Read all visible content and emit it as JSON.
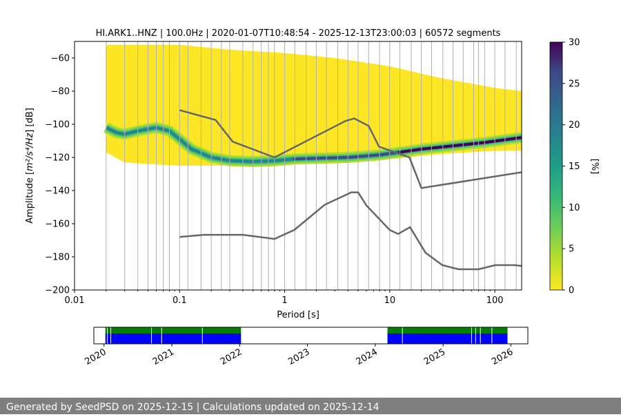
{
  "chart_data": [
    {
      "type": "heatmap",
      "title": "HI.ARK1..HNZ | 100.0Hz | 2020-01-07T10:48:54 - 2025-12-13T23:00:03 | 60572 segments",
      "xlabel": "Period [s]",
      "ylabel_prefix": "Amplitude [",
      "ylabel_unit": "m²/s⁴/Hz",
      "ylabel_suffix": "] [dB]",
      "x_scale": "log",
      "xlim": [
        0.01,
        180
      ],
      "ylim": [
        -200,
        -50
      ],
      "x_ticks": [
        0.01,
        0.1,
        1,
        10,
        100
      ],
      "x_tick_labels": [
        "0.01",
        "0.1",
        "1",
        "10",
        "100"
      ],
      "y_ticks": [
        -200,
        -180,
        -160,
        -140,
        -120,
        -100,
        -80,
        -60
      ],
      "y_tick_labels": [
        "−200",
        "−180",
        "−160",
        "−140",
        "−120",
        "−100",
        "−80",
        "−60"
      ],
      "grid": "vertical lines at period bins",
      "colorbar": {
        "label": "[%]",
        "colormap": "viridis",
        "range": [
          0,
          30
        ],
        "ticks": [
          0,
          5,
          10,
          15,
          20,
          25,
          30
        ],
        "tick_labels": [
          "0",
          "5",
          "10",
          "15",
          "20",
          "25",
          "30"
        ]
      },
      "grid_periods": [
        0.02,
        0.03,
        0.04,
        0.05,
        0.06,
        0.07,
        0.08,
        0.1,
        0.12,
        0.16,
        0.2,
        0.25,
        0.3,
        0.4,
        0.5,
        0.6,
        0.7,
        0.8,
        1.0,
        1.25,
        1.6,
        2.0,
        2.5,
        3.2,
        4.0,
        5.0,
        6.3,
        8.0,
        10,
        12.5,
        16,
        20,
        25,
        32,
        40,
        50,
        63,
        70,
        80,
        100,
        125,
        160
      ],
      "mode_line": [
        [
          0.02,
          -102
        ],
        [
          0.025,
          -105
        ],
        [
          0.03,
          -106
        ],
        [
          0.04,
          -104
        ],
        [
          0.06,
          -102
        ],
        [
          0.08,
          -104
        ],
        [
          0.1,
          -109
        ],
        [
          0.13,
          -115
        ],
        [
          0.2,
          -120
        ],
        [
          0.3,
          -122
        ],
        [
          0.5,
          -122.5
        ],
        [
          0.8,
          -122
        ],
        [
          1.2,
          -121
        ],
        [
          2,
          -120.5
        ],
        [
          4,
          -120
        ],
        [
          8,
          -118.5
        ],
        [
          12,
          -117
        ],
        [
          20,
          -115
        ],
        [
          40,
          -113
        ],
        [
          80,
          -111
        ],
        [
          180,
          -108
        ]
      ],
      "coverage": [
        {
          "period": 0.02,
          "top": -52,
          "bottom": -117
        },
        {
          "period": 0.03,
          "top": -52,
          "bottom": -123
        },
        {
          "period": 0.05,
          "top": -52,
          "bottom": -124
        },
        {
          "period": 0.1,
          "top": -52,
          "bottom": -125
        },
        {
          "period": 0.3,
          "top": -55,
          "bottom": -125
        },
        {
          "period": 1,
          "top": -57,
          "bottom": -124
        },
        {
          "period": 3,
          "top": -60,
          "bottom": -123
        },
        {
          "period": 10,
          "top": -65,
          "bottom": -121
        },
        {
          "period": 30,
          "top": -72,
          "bottom": -118
        },
        {
          "period": 100,
          "top": -78,
          "bottom": -116
        },
        {
          "period": 180,
          "top": -80,
          "bottom": -116
        }
      ],
      "series": [
        {
          "id": "nhnm",
          "x": [
            0.1,
            0.22,
            0.32,
            0.8,
            3.8,
            4.6,
            6.3,
            7.9,
            15.4,
            20.0,
            354.8
          ],
          "y": [
            -91.5,
            -97.4,
            -110.5,
            -120.0,
            -98.0,
            -96.5,
            -101.0,
            -113.5,
            -120.0,
            -138.5,
            -126.0
          ]
        },
        {
          "id": "nlnm",
          "x": [
            0.1,
            0.17,
            0.4,
            0.8,
            1.24,
            2.4,
            4.3,
            5.0,
            6.0,
            10.0,
            12.0,
            15.6,
            21.9,
            31.6,
            45.0,
            70.0,
            101.0,
            154.0,
            328.0
          ],
          "y": [
            -168.0,
            -166.7,
            -166.7,
            -169.2,
            -163.7,
            -148.6,
            -141.1,
            -141.1,
            -149.0,
            -163.8,
            -166.2,
            -162.1,
            -177.5,
            -185.0,
            -187.5,
            -187.5,
            -185.0,
            -185.0,
            -187.5
          ]
        }
      ]
    },
    {
      "type": "timeline",
      "x_ticks": [
        "2020",
        "2021",
        "2022",
        "2023",
        "2024",
        "2025",
        "2026"
      ],
      "xlim": [
        2019.85,
        2026.25
      ],
      "rows": [
        {
          "color": "#008000",
          "spans": [
            [
              2020.02,
              2022.02
            ],
            [
              2024.18,
              2025.95
            ]
          ]
        },
        {
          "color": "#0000ff",
          "spans": [
            [
              2020.02,
              2022.02
            ],
            [
              2024.18,
              2025.95
            ]
          ]
        }
      ],
      "gaps": [
        2020.05,
        2020.1,
        2020.7,
        2020.85,
        2021.45,
        2024.4,
        2025.42,
        2025.48,
        2025.55,
        2025.72
      ]
    }
  ],
  "footer": {
    "text": "Generated by SeedPSD on 2025-12-15 | Calculations updated on 2025-12-14"
  },
  "colors": {
    "heat_background": "#fde725",
    "reference_line": "#666666",
    "grid": "#b0b0b0"
  }
}
